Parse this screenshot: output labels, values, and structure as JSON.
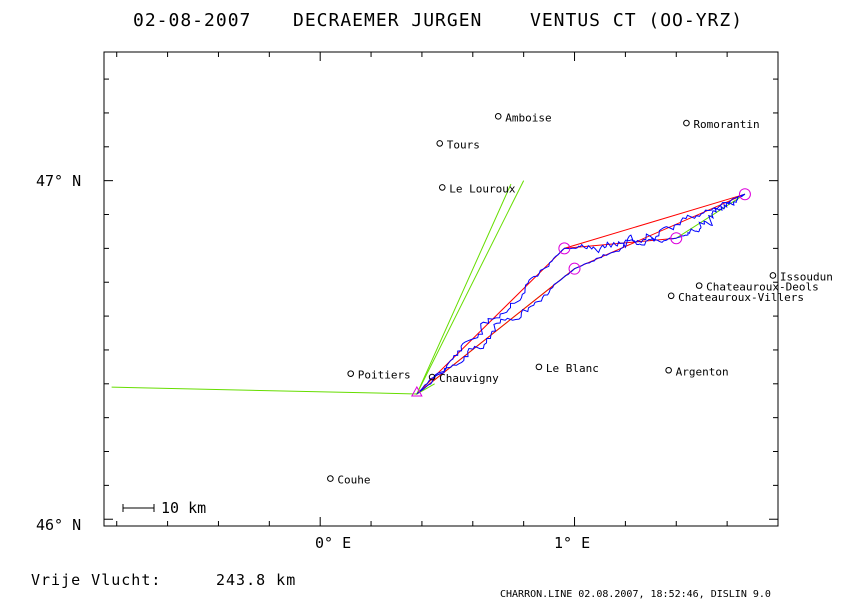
{
  "header": {
    "date": "02-08-2007",
    "pilot": "DECRAEMER JURGEN",
    "glider": "VENTUS CT (OO-YRZ)"
  },
  "axes": {
    "y_labels": [
      "47° N",
      "46° N"
    ],
    "x_labels": [
      "0° E",
      "1° E"
    ],
    "lat_range": [
      45.98,
      47.38
    ],
    "lon_range": [
      -0.85,
      1.8
    ]
  },
  "places": [
    {
      "name": "Amboise",
      "lon": 0.7,
      "lat": 47.19
    },
    {
      "name": "Romorantin",
      "lon": 1.44,
      "lat": 47.17
    },
    {
      "name": "Tours",
      "lon": 0.47,
      "lat": 47.11
    },
    {
      "name": "Le Louroux",
      "lon": 0.48,
      "lat": 46.98
    },
    {
      "name": "Issoudun",
      "lon": 1.78,
      "lat": 46.72
    },
    {
      "name": "Chateauroux-Deols",
      "lon": 1.49,
      "lat": 46.69
    },
    {
      "name": "Chateauroux-Villers",
      "lon": 1.38,
      "lat": 46.66
    },
    {
      "name": "Le Blanc",
      "lon": 0.86,
      "lat": 46.45
    },
    {
      "name": "Argenton",
      "lon": 1.37,
      "lat": 46.44
    },
    {
      "name": "Poitiers",
      "lon": 0.12,
      "lat": 46.43
    },
    {
      "name": "Chauvigny",
      "lon": 0.44,
      "lat": 46.42
    },
    {
      "name": "Couhe",
      "lon": 0.04,
      "lat": 46.12
    }
  ],
  "scale_bar": {
    "label": "10 km"
  },
  "distance": {
    "label": "Vrije Vlucht:",
    "value": "243.8 km"
  },
  "footer": {
    "text": "CHARRON.LINE 02.08.2007, 18:52:46, DISLIN 9.0"
  },
  "colors": {
    "track": "#0000ff",
    "task": "#ff0000",
    "sector": "#66dd00",
    "turnpoint": "#dd00dd"
  },
  "track": {
    "start": {
      "lon": 0.38,
      "lat": 46.37
    },
    "turnpoints": [
      {
        "lon": 0.96,
        "lat": 46.8
      },
      {
        "lon": 1.67,
        "lat": 46.96
      },
      {
        "lon": 1.0,
        "lat": 46.74
      },
      {
        "lon": 1.4,
        "lat": 46.83
      }
    ]
  },
  "sectors": [
    {
      "apex": {
        "lon": 0.38,
        "lat": 46.37
      },
      "a": {
        "lon": -0.82,
        "lat": 46.39
      },
      "b": {
        "lon": 0.75,
        "lat": 46.99
      }
    },
    {
      "apex": {
        "lon": 0.38,
        "lat": 46.37
      },
      "a": {
        "lon": 0.8,
        "lat": 47.0
      },
      "b": {
        "lon": 0.45,
        "lat": 46.4
      }
    }
  ]
}
